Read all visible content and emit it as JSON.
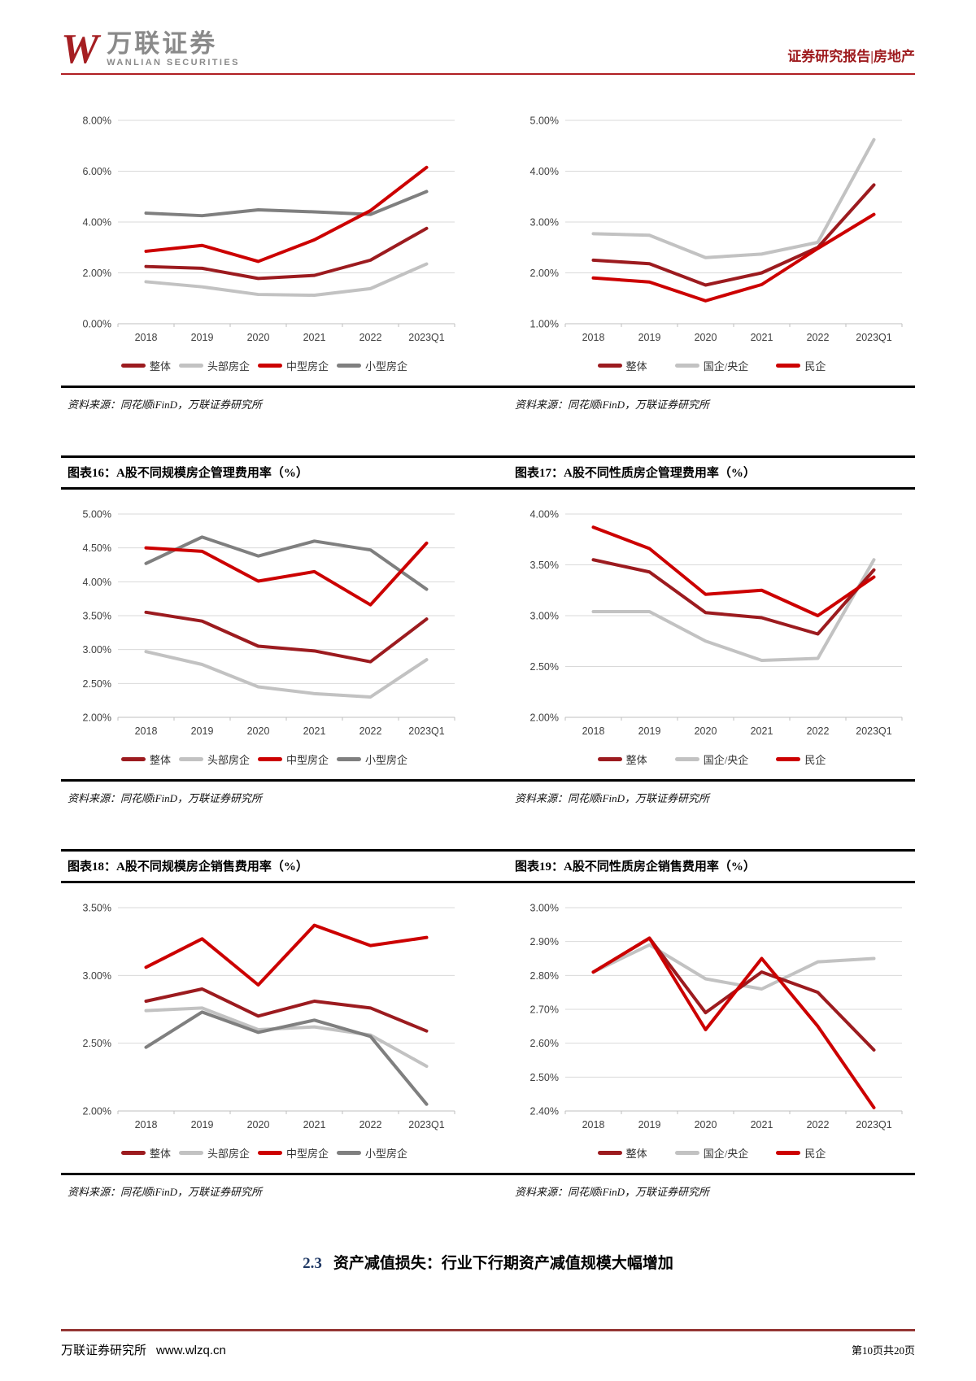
{
  "header": {
    "logo_w": "W",
    "logo_cn": "万联证券",
    "logo_en": "WANLIAN SECURITIES",
    "report_tag": "证券研究报告|房地产"
  },
  "source_note": "资料来源：同花顺iFinD，万联证券研究所",
  "section_heading": {
    "number": "2.3",
    "text": "资产减值损失：行业下行期资产减值规模大幅增加"
  },
  "footer": {
    "left": "万联证券研究所",
    "url": "www.wlzq.cn",
    "right": "第10页共20页"
  },
  "colors": {
    "dark_red": "#9c1b1f",
    "bright_red": "#cc0000",
    "light_gray": "#c2c2c2",
    "dark_gray": "#7f7f7f",
    "header_rule": "#b01e23",
    "footer_rule": "#943634",
    "grid": "#d9d9d9",
    "axis": "#bfbfbf"
  },
  "chart_data": [
    {
      "type": "line",
      "title": "",
      "categories": [
        "2018",
        "2019",
        "2020",
        "2021",
        "2022",
        "2023Q1"
      ],
      "ylim": [
        0,
        8
      ],
      "ytick_step": 2,
      "grid": true,
      "legend_position": "bottom",
      "series": [
        {
          "name": "整体",
          "color": "#9c1b1f",
          "z": 2,
          "values": [
            2.25,
            2.18,
            1.78,
            1.9,
            2.5,
            3.75
          ]
        },
        {
          "name": "头部房企",
          "color": "#c2c2c2",
          "z": 0,
          "values": [
            1.65,
            1.45,
            1.15,
            1.12,
            1.38,
            2.35
          ]
        },
        {
          "name": "中型房企",
          "color": "#cc0000",
          "z": 3,
          "values": [
            2.85,
            3.08,
            2.45,
            3.3,
            4.45,
            6.15
          ]
        },
        {
          "name": "小型房企",
          "color": "#7f7f7f",
          "z": 1,
          "values": [
            4.35,
            4.25,
            4.48,
            4.4,
            4.3,
            5.2
          ]
        }
      ]
    },
    {
      "type": "line",
      "title": "",
      "categories": [
        "2018",
        "2019",
        "2020",
        "2021",
        "2022",
        "2023Q1"
      ],
      "ylim": [
        1,
        5
      ],
      "ytick_step": 1,
      "grid": true,
      "legend_position": "bottom",
      "series": [
        {
          "name": "整体",
          "color": "#9c1b1f",
          "z": 2,
          "values": [
            2.25,
            2.18,
            1.76,
            2.0,
            2.5,
            3.73
          ]
        },
        {
          "name": "国企/央企",
          "color": "#c2c2c2",
          "z": 0,
          "values": [
            2.77,
            2.74,
            2.3,
            2.37,
            2.6,
            4.62
          ]
        },
        {
          "name": "民企",
          "color": "#cc0000",
          "z": 3,
          "values": [
            1.9,
            1.82,
            1.45,
            1.77,
            2.48,
            3.15
          ]
        }
      ]
    },
    {
      "type": "line",
      "title": "图表16：A股不同规模房企管理费用率（%）",
      "categories": [
        "2018",
        "2019",
        "2020",
        "2021",
        "2022",
        "2023Q1"
      ],
      "ylim": [
        2,
        5
      ],
      "ytick_step": 0.5,
      "grid": true,
      "legend_position": "bottom",
      "series": [
        {
          "name": "整体",
          "color": "#9c1b1f",
          "z": 2,
          "values": [
            3.55,
            3.42,
            3.05,
            2.98,
            2.82,
            3.45
          ]
        },
        {
          "name": "头部房企",
          "color": "#c2c2c2",
          "z": 0,
          "values": [
            2.97,
            2.78,
            2.45,
            2.35,
            2.3,
            2.85
          ]
        },
        {
          "name": "中型房企",
          "color": "#cc0000",
          "z": 3,
          "values": [
            4.5,
            4.45,
            4.01,
            4.15,
            3.66,
            4.57
          ]
        },
        {
          "name": "小型房企",
          "color": "#7f7f7f",
          "z": 1,
          "values": [
            4.27,
            4.66,
            4.38,
            4.6,
            4.47,
            3.89
          ]
        }
      ]
    },
    {
      "type": "line",
      "title": "图表17：A股不同性质房企管理费用率（%）",
      "categories": [
        "2018",
        "2019",
        "2020",
        "2021",
        "2022",
        "2023Q1"
      ],
      "ylim": [
        2,
        4
      ],
      "ytick_step": 0.5,
      "grid": true,
      "legend_position": "bottom",
      "series": [
        {
          "name": "整体",
          "color": "#9c1b1f",
          "z": 2,
          "values": [
            3.55,
            3.43,
            3.03,
            2.98,
            2.82,
            3.45
          ]
        },
        {
          "name": "国企/央企",
          "color": "#c2c2c2",
          "z": 0,
          "values": [
            3.04,
            3.04,
            2.75,
            2.56,
            2.58,
            3.55
          ]
        },
        {
          "name": "民企",
          "color": "#cc0000",
          "z": 3,
          "values": [
            3.87,
            3.66,
            3.21,
            3.25,
            3.0,
            3.38
          ]
        }
      ]
    },
    {
      "type": "line",
      "title": "图表18：A股不同规模房企销售费用率（%）",
      "categories": [
        "2018",
        "2019",
        "2020",
        "2021",
        "2022",
        "2023Q1"
      ],
      "ylim": [
        2,
        3.5
      ],
      "ytick_step": 0.5,
      "grid": true,
      "legend_position": "bottom",
      "series": [
        {
          "name": "整体",
          "color": "#9c1b1f",
          "z": 2,
          "values": [
            2.81,
            2.9,
            2.7,
            2.81,
            2.76,
            2.59
          ]
        },
        {
          "name": "头部房企",
          "color": "#c2c2c2",
          "z": 0,
          "values": [
            2.74,
            2.76,
            2.6,
            2.62,
            2.56,
            2.33
          ]
        },
        {
          "name": "中型房企",
          "color": "#cc0000",
          "z": 3,
          "values": [
            3.06,
            3.27,
            2.93,
            3.37,
            3.22,
            3.28
          ]
        },
        {
          "name": "小型房企",
          "color": "#7f7f7f",
          "z": 1,
          "values": [
            2.47,
            2.73,
            2.58,
            2.67,
            2.55,
            2.05
          ]
        }
      ]
    },
    {
      "type": "line",
      "title": "图表19：A股不同性质房企销售费用率（%）",
      "categories": [
        "2018",
        "2019",
        "2020",
        "2021",
        "2022",
        "2023Q1"
      ],
      "ylim": [
        2.4,
        3.0
      ],
      "ytick_step": 0.1,
      "grid": true,
      "legend_position": "bottom",
      "series": [
        {
          "name": "整体",
          "color": "#9c1b1f",
          "z": 2,
          "values": [
            2.81,
            2.91,
            2.69,
            2.81,
            2.75,
            2.58
          ]
        },
        {
          "name": "国企/央企",
          "color": "#c2c2c2",
          "z": 0,
          "values": [
            2.81,
            2.89,
            2.79,
            2.76,
            2.84,
            2.85
          ]
        },
        {
          "name": "民企",
          "color": "#cc0000",
          "z": 3,
          "values": [
            2.81,
            2.91,
            2.64,
            2.85,
            2.65,
            2.41
          ]
        }
      ]
    }
  ]
}
